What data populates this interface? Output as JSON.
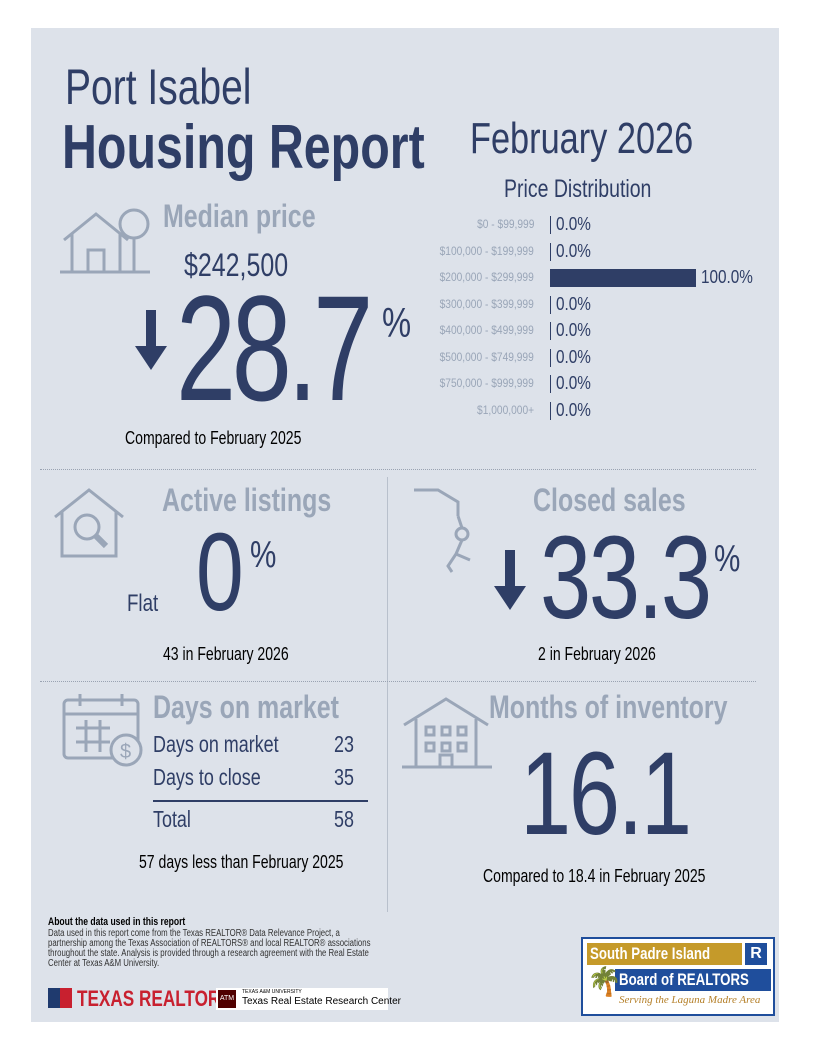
{
  "header": {
    "city": "Port Isabel",
    "title": "Housing Report",
    "period": "February 2026"
  },
  "median": {
    "label": "Median price",
    "price": "$242,500",
    "change": "28.7",
    "unit": "%",
    "direction": "down",
    "compare": "Compared to February 2025"
  },
  "price_distribution": {
    "title": "Price Distribution",
    "rows": [
      {
        "range": "$0 - $99,999",
        "pct": 0,
        "label": "0.0%"
      },
      {
        "range": "$100,000 - $199,999",
        "pct": 0,
        "label": "0.0%"
      },
      {
        "range": "$200,000 - $299,999",
        "pct": 100,
        "label": "100.0%"
      },
      {
        "range": "$300,000 - $399,999",
        "pct": 0,
        "label": "0.0%"
      },
      {
        "range": "$400,000 - $499,999",
        "pct": 0,
        "label": "0.0%"
      },
      {
        "range": "$500,000 - $749,999",
        "pct": 0,
        "label": "0.0%"
      },
      {
        "range": "$750,000 - $999,999",
        "pct": 0,
        "label": "0.0%"
      },
      {
        "range": "$1,000,000+",
        "pct": 0,
        "label": "0.0%"
      }
    ]
  },
  "active": {
    "label": "Active listings",
    "trend": "Flat",
    "change": "0",
    "unit": "%",
    "note": "43 in February 2026"
  },
  "closed": {
    "label": "Closed sales",
    "change": "33.3",
    "unit": "%",
    "direction": "down",
    "note": "2 in February 2026"
  },
  "dom": {
    "label": "Days on market",
    "rows": [
      {
        "k": "Days on market",
        "v": "23"
      },
      {
        "k": "Days to close",
        "v": "35"
      }
    ],
    "total_label": "Total",
    "total": "58",
    "note": "57 days less than February 2025"
  },
  "inventory": {
    "label": "Months of inventory",
    "value": "16.1",
    "note": "Compared to 18.4 in February 2025"
  },
  "footer": {
    "about_title": "About the data used in this report",
    "about_text": "Data used in this report come from the Texas REALTOR® Data Relevance Project, a partnership among the Texas Association of REALTORS® and local REALTOR® associations throughout the state. Analysis is provided through a research agreement with the Real Estate Center at Texas A&M University.",
    "tr_logo": "TEXAS REALTORS",
    "tamu_small": "TEXAS A&M UNIVERSITY",
    "tamu_logo": "Texas Real Estate Research Center",
    "tamu_mark": "ATM",
    "spi_line1": "South Padre Island",
    "spi_line2": "Board of REALTORS",
    "spi_line3": "Serving the Laguna Madre Area"
  },
  "colors": {
    "navy": "#2f3e66",
    "icon": "#9aa6b8",
    "bg": "#dde2ea",
    "gold": "#c9a227",
    "tr_red": "#c8202f"
  }
}
